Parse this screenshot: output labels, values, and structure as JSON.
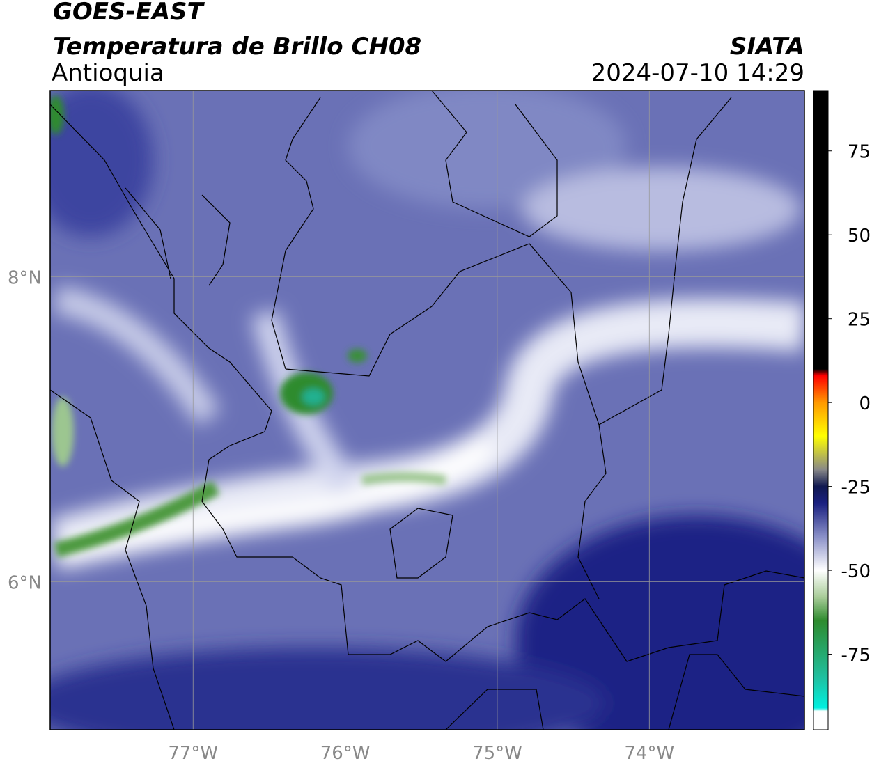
{
  "chart_data": {
    "type": "map",
    "title": "GOES-EAST",
    "subtitle": "Temperatura de Brillo CH08",
    "source": "SIATA",
    "region": "Antioquia",
    "datetime": "2024-07-10 14:29",
    "xlim": [
      -77.94,
      -72.98
    ],
    "ylim": [
      5.03,
      9.22
    ],
    "xticks": [
      {
        "value": -77,
        "label": "77°W"
      },
      {
        "value": -76,
        "label": "76°W"
      },
      {
        "value": -75,
        "label": "75°W"
      },
      {
        "value": -74,
        "label": "74°W"
      }
    ],
    "yticks": [
      {
        "value": 6,
        "label": "6°N"
      },
      {
        "value": 8,
        "label": "8°N"
      }
    ],
    "grid": true,
    "colorbar": {
      "lim": [
        -97.5,
        93
      ],
      "ticks": [
        75,
        50,
        25,
        0,
        -25,
        -50,
        -75
      ],
      "stops": [
        {
          "value": -97.5,
          "color": "#ffffff"
        },
        {
          "value": -92,
          "color": "#ffffff"
        },
        {
          "value": -91,
          "color": "#00f0e0"
        },
        {
          "value": -82,
          "color": "#20c0a0"
        },
        {
          "value": -65,
          "color": "#2e8b2e"
        },
        {
          "value": -58,
          "color": "#a8cc98"
        },
        {
          "value": -50,
          "color": "#ffffff"
        },
        {
          "value": -40,
          "color": "#8a90c8"
        },
        {
          "value": -30,
          "color": "#1a2080"
        },
        {
          "value": -25,
          "color": "#101850"
        },
        {
          "value": -20,
          "color": "#888888"
        },
        {
          "value": -10,
          "color": "#ffff00"
        },
        {
          "value": 0,
          "color": "#ff9900"
        },
        {
          "value": 8,
          "color": "#ff0000"
        },
        {
          "value": 10,
          "color": "#000000"
        },
        {
          "value": 93,
          "color": "#000000"
        }
      ]
    }
  }
}
